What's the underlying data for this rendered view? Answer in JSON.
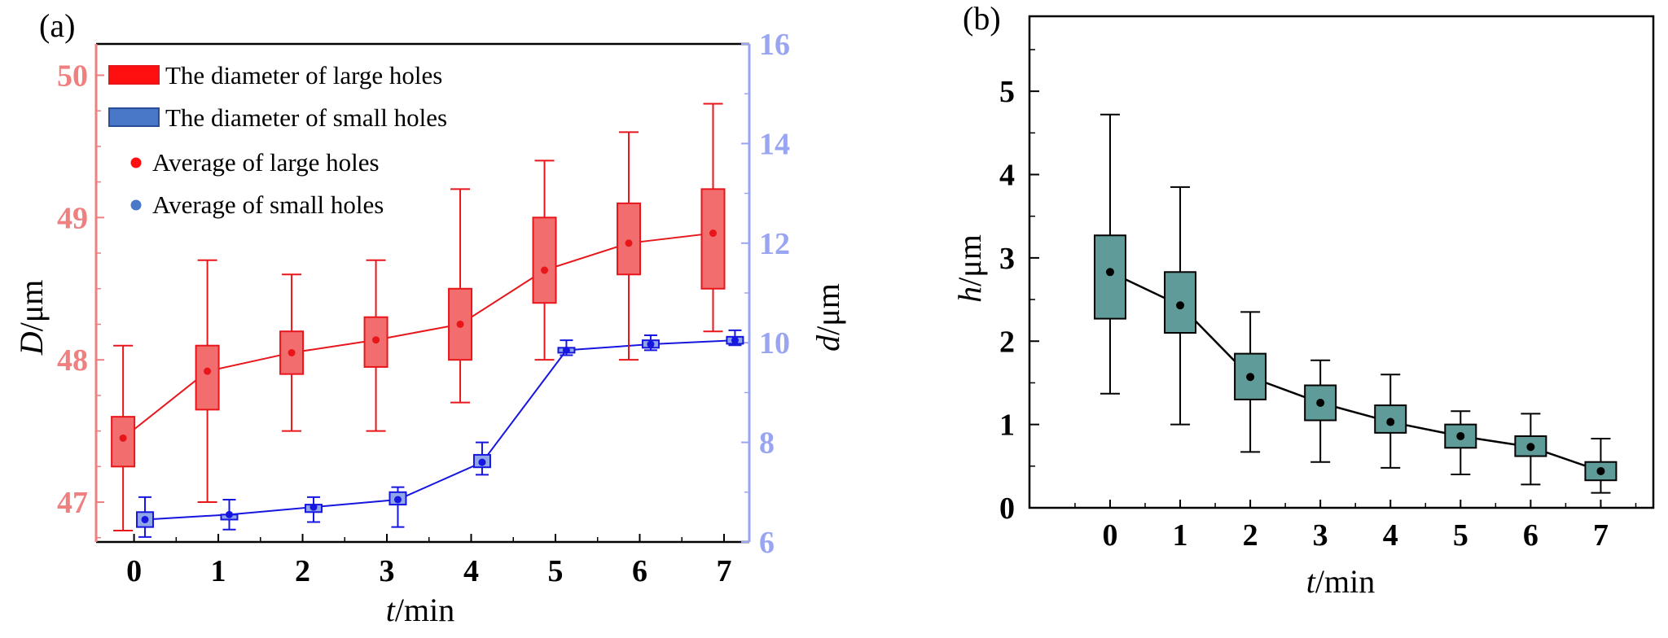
{
  "panels": {
    "a": {
      "label": "(a)",
      "xlabel_italic": "t",
      "xlabel_rest": "/min",
      "ylabel_left_italic": "D",
      "ylabel_left_rest": "/μm",
      "ylabel_right_italic": "d",
      "ylabel_right_rest": "/μm",
      "legend": [
        "The diameter of large holes",
        "The diameter of small holes",
        "Average of large holes",
        "Average of small holes"
      ]
    },
    "b": {
      "label": "(b)",
      "xlabel_italic": "t",
      "xlabel_rest": "/min",
      "ylabel_italic": "h",
      "ylabel_rest": "/μm"
    }
  },
  "colors": {
    "large_fill": "#f26d6d",
    "large_stroke": "#e8161b",
    "large_axis": "#f07f7f",
    "small_fill": "#8fa6e8",
    "small_stroke": "#1616e0",
    "small_axis": "#9aa5f2",
    "h_fill": "#5f9b98",
    "black": "#000000"
  },
  "chart_data": [
    {
      "panel": "a",
      "type": "box",
      "title": "",
      "xlabel": "t/min",
      "x": [
        0,
        1,
        2,
        3,
        4,
        5,
        6,
        7
      ],
      "xlim": [
        -0.45,
        7.3
      ],
      "xticks": [
        "0",
        "1",
        "2",
        "3",
        "4",
        "5",
        "6",
        "7"
      ],
      "y_left": {
        "label": "D/μm",
        "lim": [
          46.72,
          50.22
        ],
        "ticks": [
          "47",
          "48",
          "49",
          "50"
        ]
      },
      "y_right": {
        "label": "d/μm",
        "lim": [
          6,
          16
        ],
        "ticks": [
          "6",
          "8",
          "10",
          "12",
          "14",
          "16"
        ]
      },
      "series": [
        {
          "name": "The diameter of large holes",
          "axis": "left",
          "x_offset": -0.13,
          "whisker_low": [
            46.8,
            47.0,
            47.5,
            47.5,
            47.7,
            48.0,
            48.0,
            48.2
          ],
          "q1": [
            47.25,
            47.65,
            47.9,
            47.95,
            48.0,
            48.4,
            48.6,
            48.5
          ],
          "q3": [
            47.6,
            48.1,
            48.2,
            48.3,
            48.5,
            49.0,
            49.1,
            49.2
          ],
          "whisker_high": [
            48.1,
            48.7,
            48.6,
            48.7,
            49.2,
            49.4,
            49.6,
            49.8
          ]
        },
        {
          "name": "The diameter of small holes",
          "axis": "right",
          "x_offset": 0.13,
          "whisker_low": [
            6.1,
            6.25,
            6.4,
            6.3,
            7.35,
            9.75,
            9.85,
            9.95
          ],
          "q1": [
            6.3,
            6.45,
            6.6,
            6.75,
            7.5,
            9.8,
            9.9,
            9.98
          ],
          "q3": [
            6.6,
            6.55,
            6.75,
            7.0,
            7.75,
            9.9,
            10.05,
            10.12
          ],
          "whisker_high": [
            6.9,
            6.85,
            6.9,
            7.1,
            8.0,
            10.05,
            10.15,
            10.25
          ]
        }
      ],
      "means": [
        {
          "name": "Average of large holes",
          "axis": "left",
          "x_offset": -0.13,
          "values": [
            47.45,
            47.92,
            48.05,
            48.14,
            48.25,
            48.63,
            48.82,
            48.89
          ]
        },
        {
          "name": "Average of small holes",
          "axis": "right",
          "x_offset": 0.13,
          "values": [
            6.45,
            6.55,
            6.7,
            6.85,
            7.6,
            9.85,
            9.97,
            10.05
          ]
        }
      ]
    },
    {
      "panel": "b",
      "type": "box",
      "title": "",
      "xlabel": "t/min",
      "ylabel": "h/μm",
      "x": [
        0,
        1,
        2,
        3,
        4,
        5,
        6,
        7
      ],
      "xlim": [
        -1.15,
        7.75
      ],
      "ylim": [
        0,
        5.9
      ],
      "xticks": [
        "0",
        "1",
        "2",
        "3",
        "4",
        "5",
        "6",
        "7"
      ],
      "yticks": [
        "0",
        "1",
        "2",
        "3",
        "4",
        "5"
      ],
      "series": [
        {
          "name": "h",
          "whisker_low": [
            1.37,
            1.0,
            0.67,
            0.55,
            0.48,
            0.4,
            0.28,
            0.18
          ],
          "q1": [
            2.27,
            2.1,
            1.3,
            1.05,
            0.9,
            0.72,
            0.62,
            0.33
          ],
          "q3": [
            3.27,
            2.83,
            1.85,
            1.47,
            1.23,
            1.0,
            0.86,
            0.55
          ],
          "whisker_high": [
            4.72,
            3.85,
            2.35,
            1.77,
            1.6,
            1.16,
            1.13,
            0.83
          ]
        }
      ],
      "means": [
        {
          "name": "mean",
          "values": [
            2.83,
            2.43,
            1.57,
            1.26,
            1.03,
            0.86,
            0.73,
            0.44
          ]
        }
      ]
    }
  ]
}
